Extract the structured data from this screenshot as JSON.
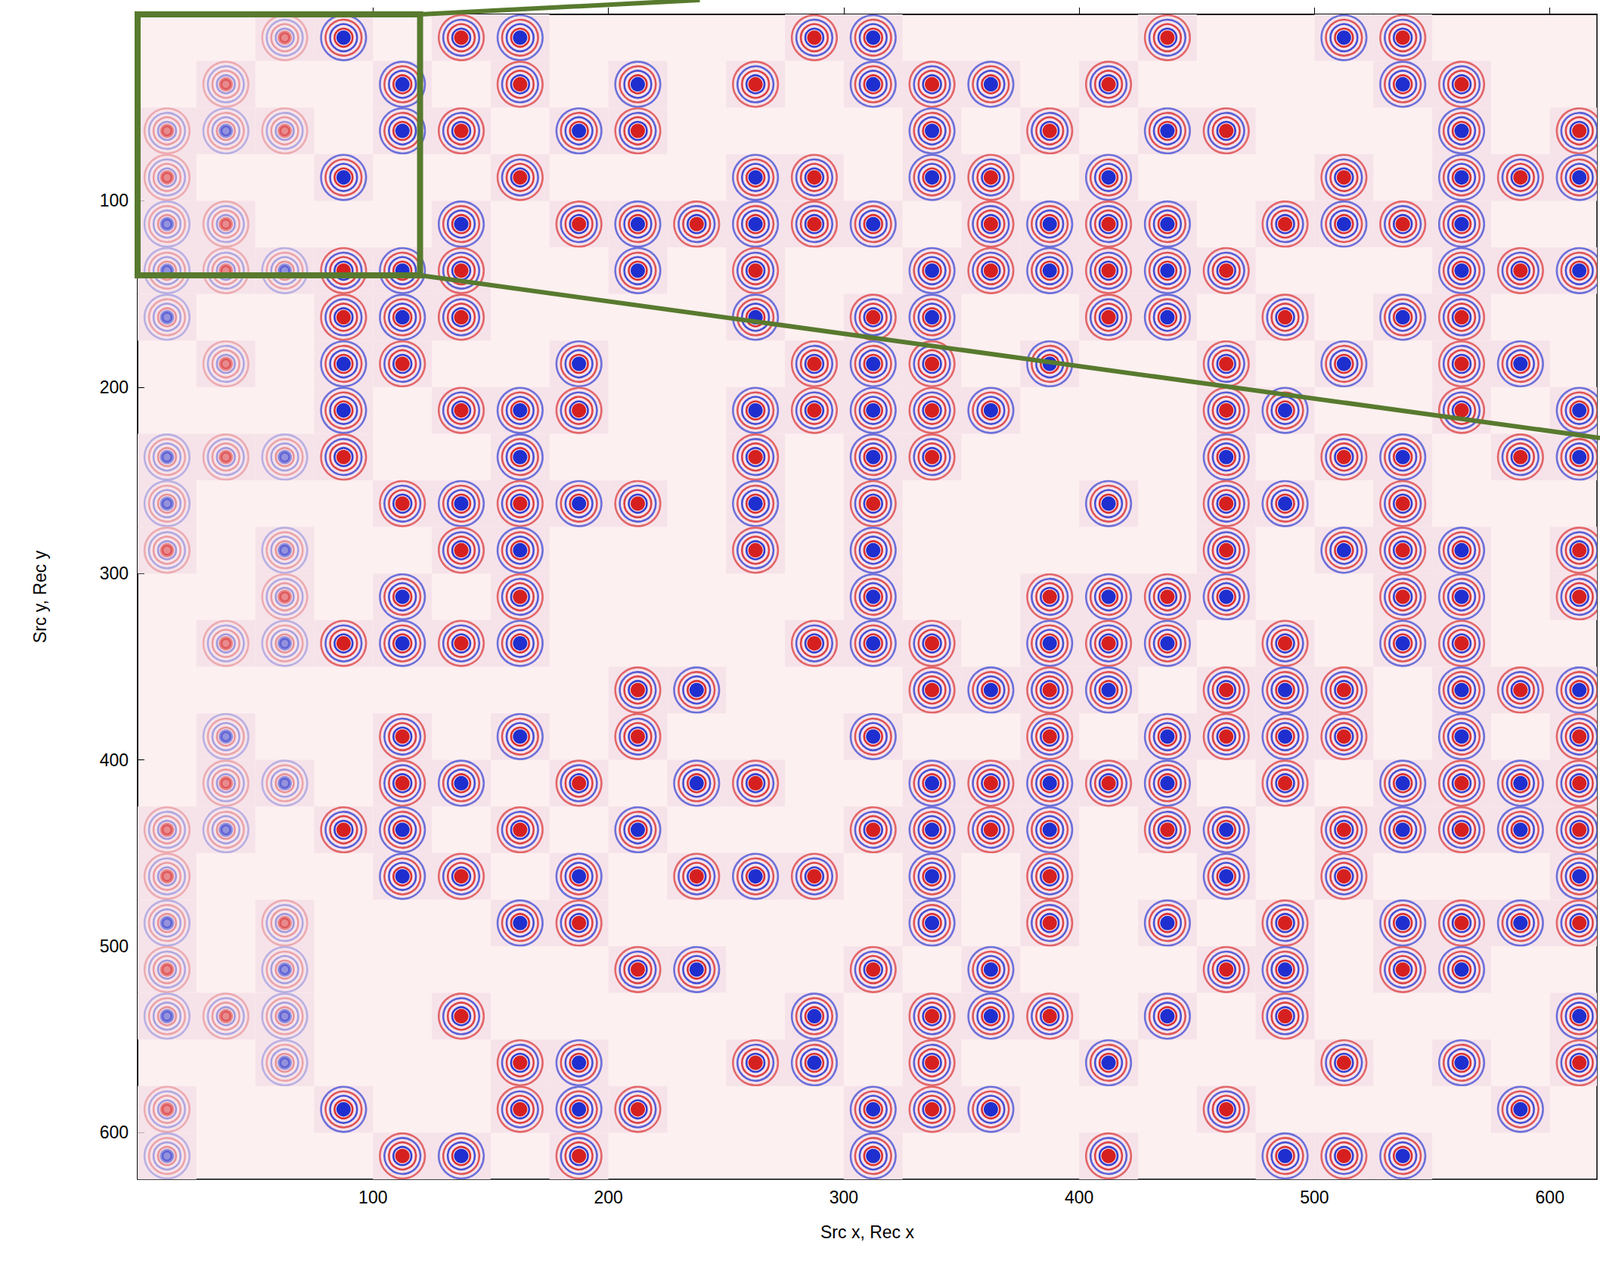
{
  "chart_data": {
    "type": "heatmap",
    "x_label": "Src x, Rec x",
    "y_label": "Src y, Rec y",
    "xlim": [
      0,
      620
    ],
    "ylim": [
      0,
      625
    ],
    "xticks": [
      100,
      200,
      300,
      400,
      500,
      600
    ],
    "yticks": [
      100,
      200,
      300,
      400,
      500,
      600
    ],
    "block_size": 25,
    "cell_rows": [
      {
        "y": 0,
        "x": [
          50,
          75,
          125,
          150,
          275,
          300,
          425,
          500,
          525
        ]
      },
      {
        "y": 25,
        "x": [
          25,
          100,
          150,
          200,
          250,
          300,
          325,
          350,
          400,
          525,
          550
        ]
      },
      {
        "y": 50,
        "x": [
          0,
          25,
          50,
          100,
          125,
          175,
          200,
          325,
          375,
          425,
          450,
          550,
          600
        ]
      },
      {
        "y": 75,
        "x": [
          0,
          75,
          150,
          250,
          275,
          325,
          350,
          400,
          500,
          550,
          575,
          600
        ]
      },
      {
        "y": 100,
        "x": [
          0,
          25,
          125,
          175,
          200,
          225,
          250,
          275,
          300,
          350,
          375,
          400,
          425,
          475,
          500,
          525,
          550
        ]
      },
      {
        "y": 125,
        "x": [
          0,
          25,
          50,
          75,
          100,
          125,
          200,
          250,
          325,
          350,
          375,
          400,
          425,
          450,
          550,
          575,
          600
        ]
      },
      {
        "y": 150,
        "x": [
          0,
          75,
          100,
          125,
          250,
          300,
          325,
          400,
          425,
          475,
          525,
          550
        ]
      },
      {
        "y": 175,
        "x": [
          25,
          75,
          100,
          175,
          275,
          300,
          325,
          375,
          450,
          500,
          550,
          575
        ]
      },
      {
        "y": 200,
        "x": [
          75,
          125,
          150,
          175,
          250,
          275,
          300,
          325,
          350,
          450,
          475,
          550,
          600
        ]
      },
      {
        "y": 225,
        "x": [
          0,
          25,
          50,
          75,
          150,
          250,
          300,
          325,
          450,
          500,
          525,
          575,
          600
        ]
      },
      {
        "y": 250,
        "x": [
          0,
          100,
          125,
          150,
          175,
          200,
          250,
          300,
          400,
          450,
          475,
          525
        ]
      },
      {
        "y": 275,
        "x": [
          0,
          50,
          125,
          150,
          250,
          300,
          450,
          500,
          525,
          550,
          600
        ]
      },
      {
        "y": 300,
        "x": [
          50,
          100,
          150,
          300,
          375,
          400,
          425,
          450,
          525,
          550,
          600
        ]
      },
      {
        "y": 325,
        "x": [
          25,
          50,
          75,
          100,
          125,
          150,
          275,
          300,
          325,
          375,
          400,
          425,
          475,
          525,
          550
        ]
      },
      {
        "y": 350,
        "x": [
          200,
          225,
          325,
          350,
          375,
          400,
          450,
          475,
          500,
          550,
          575,
          600
        ]
      },
      {
        "y": 375,
        "x": [
          25,
          100,
          150,
          200,
          300,
          375,
          425,
          450,
          475,
          500,
          550,
          600
        ]
      },
      {
        "y": 400,
        "x": [
          25,
          50,
          100,
          125,
          175,
          225,
          250,
          325,
          350,
          375,
          400,
          425,
          475,
          525,
          550,
          575,
          600
        ]
      },
      {
        "y": 425,
        "x": [
          0,
          25,
          75,
          100,
          150,
          200,
          300,
          325,
          350,
          375,
          425,
          450,
          500,
          525,
          550,
          575,
          600
        ]
      },
      {
        "y": 450,
        "x": [
          0,
          100,
          125,
          175,
          225,
          250,
          275,
          325,
          375,
          450,
          500,
          600
        ]
      },
      {
        "y": 475,
        "x": [
          0,
          50,
          150,
          175,
          325,
          375,
          425,
          475,
          525,
          550,
          575,
          600
        ]
      },
      {
        "y": 500,
        "x": [
          0,
          50,
          200,
          225,
          300,
          350,
          450,
          475,
          525,
          550
        ]
      },
      {
        "y": 525,
        "x": [
          0,
          25,
          50,
          125,
          275,
          325,
          350,
          375,
          425,
          475,
          600
        ]
      },
      {
        "y": 550,
        "x": [
          50,
          150,
          175,
          250,
          275,
          325,
          400,
          500,
          550,
          600
        ]
      },
      {
        "y": 575,
        "x": [
          0,
          75,
          150,
          175,
          200,
          300,
          325,
          350,
          450,
          575
        ]
      },
      {
        "y": 600,
        "x": [
          0,
          100,
          125,
          175,
          300,
          400,
          475,
          500,
          525
        ]
      }
    ],
    "zoom_box": {
      "x": [
        0,
        120
      ],
      "y": [
        0,
        140
      ]
    }
  }
}
